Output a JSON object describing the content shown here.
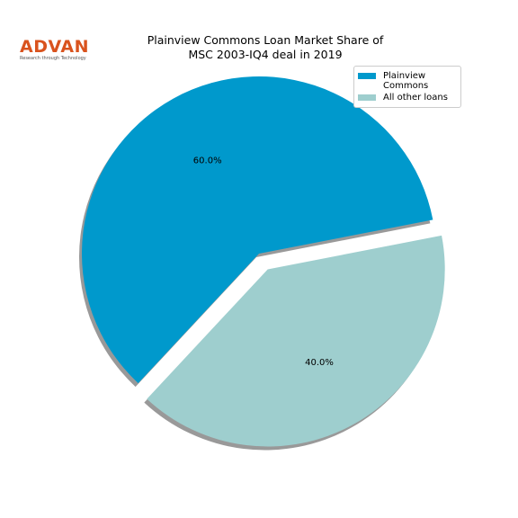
{
  "chart_data": {
    "type": "pie",
    "title": "Plainview Commons Loan Market Share of\nMSC 2003-IQ4 deal in 2019",
    "logo": {
      "name": "ADVAN",
      "tagline": "Research through Technology"
    },
    "categories": [
      "Plainview Commons",
      "All other loans"
    ],
    "values": [
      60,
      40
    ],
    "value_labels": [
      "60.0%",
      "40.0%"
    ],
    "colors": [
      "#0099cc",
      "#9ecece"
    ],
    "legend": "upper right"
  }
}
